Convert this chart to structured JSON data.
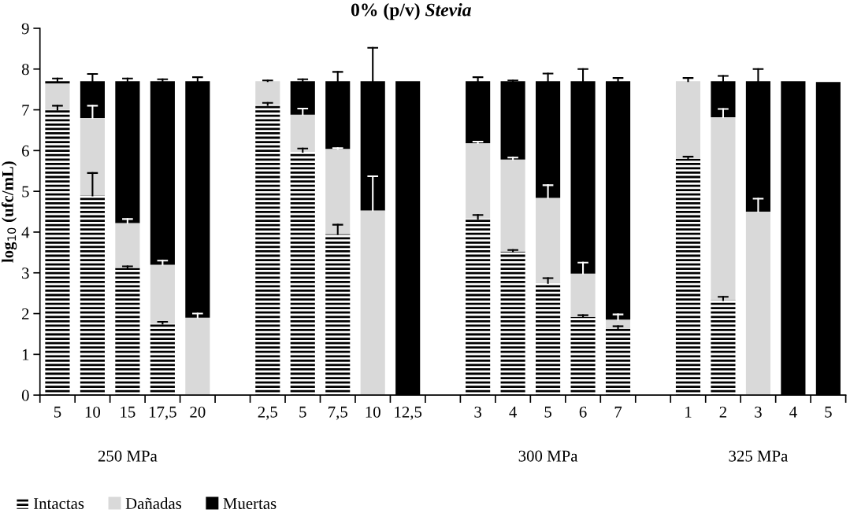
{
  "chart_data": {
    "type": "bar",
    "stacked": true,
    "title": "0% (p/v) Stevia",
    "ylabel": "log$_{10}$ (ufc/mL)",
    "categories": [
      "5",
      "10",
      "15",
      "17,5",
      "20",
      null,
      "2,5",
      "5",
      "7,5",
      "10",
      "12,5",
      null,
      "3",
      "4",
      "5",
      "6",
      "7",
      null,
      "1",
      "2",
      "3",
      "4",
      "5"
    ],
    "series": [
      {
        "name": "Intactas",
        "color": "#000000",
        "values": [
          7.0,
          4.9,
          3.12,
          1.75,
          0,
          null,
          7.12,
          5.97,
          3.95,
          0,
          0,
          null,
          4.33,
          3.52,
          2.75,
          1.92,
          1.63,
          null,
          5.8,
          2.33,
          0,
          0,
          0
        ],
        "errors": [
          [
            7.0,
            7.1
          ],
          [
            4.9,
            5.45
          ],
          [
            3.12,
            3.16
          ],
          [
            1.75,
            1.8
          ],
          null,
          null,
          [
            7.12,
            7.17
          ],
          [
            5.97,
            6.05
          ],
          [
            3.95,
            4.18
          ],
          null,
          null,
          null,
          [
            4.33,
            4.42
          ],
          [
            3.52,
            3.56
          ],
          [
            2.75,
            2.87
          ],
          [
            1.92,
            1.96
          ],
          [
            1.63,
            1.69
          ],
          null,
          [
            5.8,
            5.85
          ],
          [
            2.33,
            2.41
          ],
          null,
          null,
          null
        ]
      },
      {
        "name": "Dañadas",
        "color": "#d9d9d9",
        "values": [
          0.65,
          1.9,
          1.1,
          1.45,
          1.9,
          null,
          0.58,
          0.91,
          2.09,
          4.53,
          0,
          null,
          1.85,
          2.26,
          2.09,
          1.06,
          0.22,
          null,
          1.9,
          4.49,
          4.5,
          0,
          0
        ],
        "errors": [
          null,
          [
            6.8,
            7.1
          ],
          [
            4.22,
            4.32
          ],
          [
            3.2,
            3.3
          ],
          [
            1.9,
            2.0
          ],
          null,
          [
            7.7,
            7.72
          ],
          [
            6.88,
            7.03
          ],
          [
            6.04,
            6.06
          ],
          [
            4.53,
            5.37
          ],
          null,
          null,
          [
            6.18,
            6.22
          ],
          [
            5.78,
            5.83
          ],
          [
            4.84,
            5.15
          ],
          [
            2.98,
            3.25
          ],
          [
            1.85,
            1.98
          ],
          null,
          [
            7.7,
            7.78
          ],
          [
            6.82,
            7.02
          ],
          [
            4.5,
            4.82
          ],
          null,
          null
        ]
      },
      {
        "name": "Muertas",
        "color": "#000000",
        "values": [
          0.05,
          0.9,
          3.48,
          4.5,
          5.8,
          null,
          0,
          0.82,
          1.66,
          3.17,
          7.7,
          null,
          1.52,
          1.92,
          2.86,
          4.72,
          5.85,
          null,
          0,
          0.88,
          3.2,
          7.7,
          7.68
        ],
        "errors": [
          [
            7.7,
            7.77
          ],
          [
            7.7,
            7.88
          ],
          [
            7.7,
            7.77
          ],
          [
            7.7,
            7.75
          ],
          [
            7.7,
            7.8
          ],
          null,
          null,
          [
            7.7,
            7.75
          ],
          [
            7.7,
            7.93
          ],
          [
            7.7,
            8.52
          ],
          null,
          null,
          [
            7.7,
            7.8
          ],
          [
            7.7,
            7.72
          ],
          [
            7.7,
            7.89
          ],
          [
            7.7,
            8.0
          ],
          [
            7.7,
            7.78
          ],
          null,
          null,
          [
            7.7,
            7.83
          ],
          [
            7.7,
            8.0
          ],
          null,
          null
        ]
      }
    ],
    "ylim": [
      0,
      9
    ],
    "yticks": [
      0,
      1,
      2,
      3,
      4,
      5,
      6,
      7,
      8,
      9
    ],
    "annotations": [
      "250 MPa",
      "300 MPa",
      "325 MPa"
    ],
    "legend": "bottom left"
  }
}
